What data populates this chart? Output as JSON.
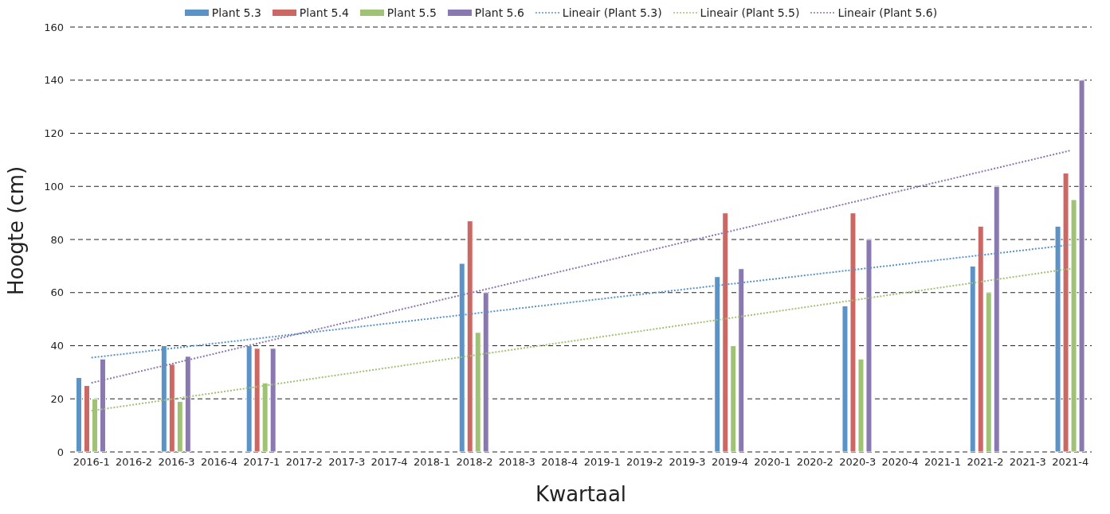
{
  "chart_data": {
    "type": "bar",
    "xlabel": "Kwartaal",
    "ylabel": "Hoogte (cm)",
    "categories": [
      "2016-1",
      "2016-2",
      "2016-3",
      "2016-4",
      "2017-1",
      "2017-2",
      "2017-3",
      "2017-4",
      "2018-1",
      "2018-2",
      "2018-3",
      "2018-4",
      "2019-1",
      "2019-2",
      "2019-3",
      "2019-4",
      "2020-1",
      "2020-2",
      "2020-3",
      "2020-4",
      "2021-1",
      "2021-2",
      "2021-3",
      "2021-4"
    ],
    "series": [
      {
        "name": "Plant 5.3",
        "color": "#5b93c7",
        "values": [
          28,
          null,
          40,
          null,
          40,
          null,
          null,
          null,
          null,
          71,
          null,
          null,
          null,
          null,
          null,
          66,
          null,
          null,
          55,
          null,
          null,
          70,
          null,
          85
        ]
      },
      {
        "name": "Plant 5.4",
        "color": "#cc6863",
        "values": [
          25,
          null,
          33,
          null,
          39,
          null,
          null,
          null,
          null,
          87,
          null,
          null,
          null,
          null,
          null,
          90,
          null,
          null,
          90,
          null,
          null,
          85,
          null,
          105
        ]
      },
      {
        "name": "Plant 5.5",
        "color": "#a0c274",
        "values": [
          20,
          null,
          19,
          null,
          26,
          null,
          null,
          null,
          null,
          45,
          null,
          null,
          null,
          null,
          null,
          40,
          null,
          null,
          35,
          null,
          null,
          60,
          null,
          95
        ]
      },
      {
        "name": "Plant 5.6",
        "color": "#8a78b0",
        "values": [
          35,
          null,
          36,
          null,
          39,
          null,
          null,
          null,
          null,
          60,
          null,
          null,
          null,
          null,
          null,
          69,
          null,
          null,
          80,
          null,
          null,
          100,
          null,
          140
        ]
      },
      {
        "name": "Lineair (Plant 5.3)",
        "type": "line",
        "line_style": "dotted",
        "color": "#5b93c7",
        "values": [
          35.5,
          null,
          null,
          null,
          null,
          null,
          null,
          null,
          null,
          null,
          null,
          null,
          null,
          null,
          null,
          null,
          null,
          null,
          null,
          null,
          null,
          null,
          null,
          78
        ]
      },
      {
        "name": "Lineair (Plant 5.5)",
        "type": "line",
        "line_style": "dotted",
        "color": "#a0c274",
        "values": [
          15.5,
          null,
          null,
          null,
          null,
          null,
          null,
          null,
          null,
          null,
          null,
          null,
          null,
          null,
          null,
          null,
          null,
          null,
          null,
          null,
          null,
          null,
          null,
          69
        ]
      },
      {
        "name": "Lineair (Plant 5.6)",
        "type": "line",
        "line_style": "dotted",
        "color": "#8a78b0",
        "values": [
          26,
          null,
          null,
          null,
          null,
          null,
          null,
          null,
          null,
          null,
          null,
          null,
          null,
          null,
          null,
          null,
          null,
          null,
          null,
          null,
          null,
          null,
          null,
          113.5
        ]
      }
    ],
    "ylim": [
      0,
      160
    ],
    "yticks": [
      0,
      20,
      40,
      60,
      80,
      100,
      120,
      140,
      160
    ],
    "grid": "y",
    "legend": "top",
    "marker": "none"
  }
}
